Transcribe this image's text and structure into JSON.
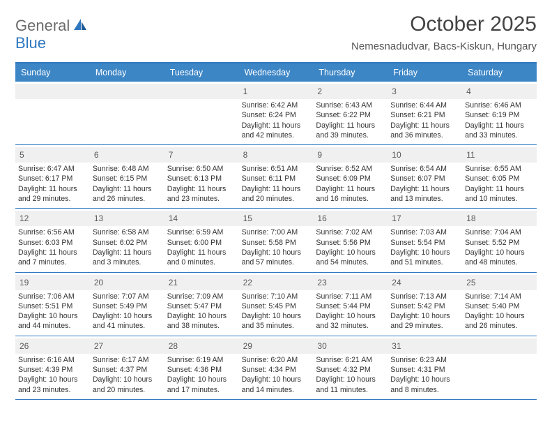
{
  "logo": {
    "text1": "General",
    "text2": "Blue"
  },
  "title": "October 2025",
  "location": "Nemesnadudvar, Bacs-Kiskun, Hungary",
  "colors": {
    "header_bg": "#3d86c6",
    "border": "#2f78c0",
    "daynum_bg": "#f0f0f0",
    "text": "#333333",
    "title_text": "#444444"
  },
  "dayNames": [
    "Sunday",
    "Monday",
    "Tuesday",
    "Wednesday",
    "Thursday",
    "Friday",
    "Saturday"
  ],
  "weeks": [
    [
      {
        "n": "",
        "sr": "",
        "ss": "",
        "dl": ""
      },
      {
        "n": "",
        "sr": "",
        "ss": "",
        "dl": ""
      },
      {
        "n": "",
        "sr": "",
        "ss": "",
        "dl": ""
      },
      {
        "n": "1",
        "sr": "Sunrise: 6:42 AM",
        "ss": "Sunset: 6:24 PM",
        "dl": "Daylight: 11 hours and 42 minutes."
      },
      {
        "n": "2",
        "sr": "Sunrise: 6:43 AM",
        "ss": "Sunset: 6:22 PM",
        "dl": "Daylight: 11 hours and 39 minutes."
      },
      {
        "n": "3",
        "sr": "Sunrise: 6:44 AM",
        "ss": "Sunset: 6:21 PM",
        "dl": "Daylight: 11 hours and 36 minutes."
      },
      {
        "n": "4",
        "sr": "Sunrise: 6:46 AM",
        "ss": "Sunset: 6:19 PM",
        "dl": "Daylight: 11 hours and 33 minutes."
      }
    ],
    [
      {
        "n": "5",
        "sr": "Sunrise: 6:47 AM",
        "ss": "Sunset: 6:17 PM",
        "dl": "Daylight: 11 hours and 29 minutes."
      },
      {
        "n": "6",
        "sr": "Sunrise: 6:48 AM",
        "ss": "Sunset: 6:15 PM",
        "dl": "Daylight: 11 hours and 26 minutes."
      },
      {
        "n": "7",
        "sr": "Sunrise: 6:50 AM",
        "ss": "Sunset: 6:13 PM",
        "dl": "Daylight: 11 hours and 23 minutes."
      },
      {
        "n": "8",
        "sr": "Sunrise: 6:51 AM",
        "ss": "Sunset: 6:11 PM",
        "dl": "Daylight: 11 hours and 20 minutes."
      },
      {
        "n": "9",
        "sr": "Sunrise: 6:52 AM",
        "ss": "Sunset: 6:09 PM",
        "dl": "Daylight: 11 hours and 16 minutes."
      },
      {
        "n": "10",
        "sr": "Sunrise: 6:54 AM",
        "ss": "Sunset: 6:07 PM",
        "dl": "Daylight: 11 hours and 13 minutes."
      },
      {
        "n": "11",
        "sr": "Sunrise: 6:55 AM",
        "ss": "Sunset: 6:05 PM",
        "dl": "Daylight: 11 hours and 10 minutes."
      }
    ],
    [
      {
        "n": "12",
        "sr": "Sunrise: 6:56 AM",
        "ss": "Sunset: 6:03 PM",
        "dl": "Daylight: 11 hours and 7 minutes."
      },
      {
        "n": "13",
        "sr": "Sunrise: 6:58 AM",
        "ss": "Sunset: 6:02 PM",
        "dl": "Daylight: 11 hours and 3 minutes."
      },
      {
        "n": "14",
        "sr": "Sunrise: 6:59 AM",
        "ss": "Sunset: 6:00 PM",
        "dl": "Daylight: 11 hours and 0 minutes."
      },
      {
        "n": "15",
        "sr": "Sunrise: 7:00 AM",
        "ss": "Sunset: 5:58 PM",
        "dl": "Daylight: 10 hours and 57 minutes."
      },
      {
        "n": "16",
        "sr": "Sunrise: 7:02 AM",
        "ss": "Sunset: 5:56 PM",
        "dl": "Daylight: 10 hours and 54 minutes."
      },
      {
        "n": "17",
        "sr": "Sunrise: 7:03 AM",
        "ss": "Sunset: 5:54 PM",
        "dl": "Daylight: 10 hours and 51 minutes."
      },
      {
        "n": "18",
        "sr": "Sunrise: 7:04 AM",
        "ss": "Sunset: 5:52 PM",
        "dl": "Daylight: 10 hours and 48 minutes."
      }
    ],
    [
      {
        "n": "19",
        "sr": "Sunrise: 7:06 AM",
        "ss": "Sunset: 5:51 PM",
        "dl": "Daylight: 10 hours and 44 minutes."
      },
      {
        "n": "20",
        "sr": "Sunrise: 7:07 AM",
        "ss": "Sunset: 5:49 PM",
        "dl": "Daylight: 10 hours and 41 minutes."
      },
      {
        "n": "21",
        "sr": "Sunrise: 7:09 AM",
        "ss": "Sunset: 5:47 PM",
        "dl": "Daylight: 10 hours and 38 minutes."
      },
      {
        "n": "22",
        "sr": "Sunrise: 7:10 AM",
        "ss": "Sunset: 5:45 PM",
        "dl": "Daylight: 10 hours and 35 minutes."
      },
      {
        "n": "23",
        "sr": "Sunrise: 7:11 AM",
        "ss": "Sunset: 5:44 PM",
        "dl": "Daylight: 10 hours and 32 minutes."
      },
      {
        "n": "24",
        "sr": "Sunrise: 7:13 AM",
        "ss": "Sunset: 5:42 PM",
        "dl": "Daylight: 10 hours and 29 minutes."
      },
      {
        "n": "25",
        "sr": "Sunrise: 7:14 AM",
        "ss": "Sunset: 5:40 PM",
        "dl": "Daylight: 10 hours and 26 minutes."
      }
    ],
    [
      {
        "n": "26",
        "sr": "Sunrise: 6:16 AM",
        "ss": "Sunset: 4:39 PM",
        "dl": "Daylight: 10 hours and 23 minutes."
      },
      {
        "n": "27",
        "sr": "Sunrise: 6:17 AM",
        "ss": "Sunset: 4:37 PM",
        "dl": "Daylight: 10 hours and 20 minutes."
      },
      {
        "n": "28",
        "sr": "Sunrise: 6:19 AM",
        "ss": "Sunset: 4:36 PM",
        "dl": "Daylight: 10 hours and 17 minutes."
      },
      {
        "n": "29",
        "sr": "Sunrise: 6:20 AM",
        "ss": "Sunset: 4:34 PM",
        "dl": "Daylight: 10 hours and 14 minutes."
      },
      {
        "n": "30",
        "sr": "Sunrise: 6:21 AM",
        "ss": "Sunset: 4:32 PM",
        "dl": "Daylight: 10 hours and 11 minutes."
      },
      {
        "n": "31",
        "sr": "Sunrise: 6:23 AM",
        "ss": "Sunset: 4:31 PM",
        "dl": "Daylight: 10 hours and 8 minutes."
      },
      {
        "n": "",
        "sr": "",
        "ss": "",
        "dl": ""
      }
    ]
  ]
}
